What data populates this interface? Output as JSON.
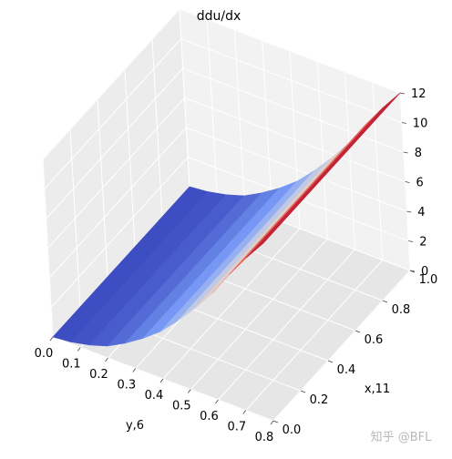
{
  "chart_data": {
    "type": "surface-3d",
    "title": "ddu/dx",
    "xlabel": "y,6",
    "ylabel": "x,11",
    "zlabel": "",
    "x_ticks": [
      "0.0",
      "0.1",
      "0.2",
      "0.3",
      "0.4",
      "0.5",
      "0.6",
      "0.7",
      "0.8"
    ],
    "y_ticks": [
      "0.0",
      "0.2",
      "0.4",
      "0.6",
      "0.8",
      "1.0"
    ],
    "z_ticks": [
      "0",
      "2",
      "4",
      "6",
      "8",
      "10",
      "12"
    ],
    "xlim": [
      0,
      0.8
    ],
    "ylim": [
      0,
      1.0
    ],
    "zlim": [
      0,
      12
    ],
    "colormap": "coolwarm",
    "surface_profile": {
      "x": [
        0.0,
        0.1,
        0.2,
        0.3,
        0.4,
        0.5,
        0.6,
        0.7,
        0.8
      ],
      "z": [
        0.0,
        0.2,
        0.8,
        1.8,
        3.2,
        5.0,
        7.2,
        9.8,
        12.0
      ]
    },
    "grid": true
  },
  "watermark": "知乎 @BFL"
}
